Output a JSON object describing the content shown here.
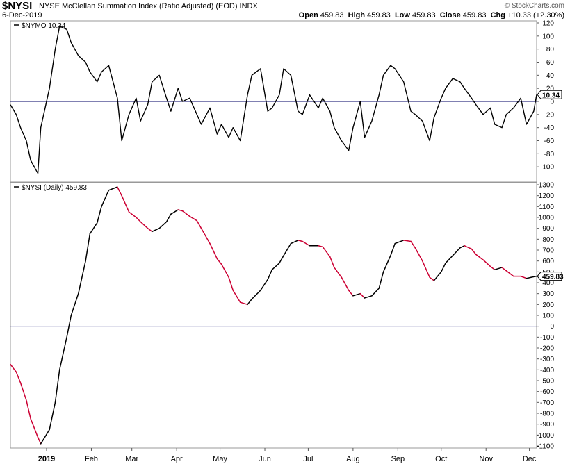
{
  "header": {
    "symbol": "$NYSI",
    "description": "NYSE McClellan Summation Index (Ratio Adjusted) (EOD)  INDX",
    "date": "6-Dec-2019",
    "brand": "© StockCharts.com",
    "open_label": "Open",
    "open": "459.83",
    "high_label": "High",
    "high": "459.83",
    "low_label": "Low",
    "low": "459.83",
    "close_label": "Close",
    "close": "459.83",
    "chg_label": "Chg",
    "chg": "+10.33 (+2.30%)"
  },
  "colors": {
    "up": "#000000",
    "down": "#cc0033",
    "zero_line": "#000066",
    "badge": "#000000"
  },
  "chart_data": [
    {
      "type": "line",
      "label": "$NYMO 10.34",
      "last_value_label": "10.34",
      "ylim": [
        -120,
        120
      ],
      "yticks": [
        120,
        100,
        80,
        60,
        40,
        20,
        0,
        -20,
        -40,
        -60,
        -80,
        -100
      ],
      "zero_line": 0,
      "x": [
        "2018-12-07",
        "2018-12-11",
        "2018-12-14",
        "2018-12-18",
        "2018-12-21",
        "2018-12-26",
        "2018-12-28",
        "2019-01-03",
        "2019-01-07",
        "2019-01-10",
        "2019-01-15",
        "2019-01-18",
        "2019-01-23",
        "2019-01-28",
        "2019-01-31",
        "2019-02-05",
        "2019-02-08",
        "2019-02-13",
        "2019-02-19",
        "2019-02-22",
        "2019-02-27",
        "2019-03-04",
        "2019-03-07",
        "2019-03-12",
        "2019-03-15",
        "2019-03-20",
        "2019-03-25",
        "2019-03-28",
        "2019-04-02",
        "2019-04-05",
        "2019-04-10",
        "2019-04-15",
        "2019-04-18",
        "2019-04-24",
        "2019-04-29",
        "2019-05-02",
        "2019-05-07",
        "2019-05-10",
        "2019-05-15",
        "2019-05-20",
        "2019-05-23",
        "2019-05-29",
        "2019-06-03",
        "2019-06-06",
        "2019-06-11",
        "2019-06-14",
        "2019-06-19",
        "2019-06-24",
        "2019-06-27",
        "2019-07-02",
        "2019-07-08",
        "2019-07-11",
        "2019-07-16",
        "2019-07-19",
        "2019-07-24",
        "2019-07-29",
        "2019-08-01",
        "2019-08-06",
        "2019-08-09",
        "2019-08-14",
        "2019-08-19",
        "2019-08-22",
        "2019-08-27",
        "2019-08-30",
        "2019-09-05",
        "2019-09-10",
        "2019-09-13",
        "2019-09-18",
        "2019-09-23",
        "2019-09-26",
        "2019-10-01",
        "2019-10-04",
        "2019-10-09",
        "2019-10-14",
        "2019-10-17",
        "2019-10-22",
        "2019-10-25",
        "2019-10-30",
        "2019-11-04",
        "2019-11-07",
        "2019-11-12",
        "2019-11-15",
        "2019-11-20",
        "2019-11-25",
        "2019-11-29",
        "2019-12-04",
        "2019-12-06"
      ],
      "values": [
        -5,
        -20,
        -40,
        -60,
        -90,
        -110,
        -40,
        20,
        80,
        115,
        110,
        90,
        70,
        60,
        45,
        30,
        45,
        55,
        5,
        -60,
        -20,
        5,
        -30,
        -5,
        30,
        40,
        5,
        -15,
        20,
        0,
        5,
        -20,
        -35,
        -10,
        -50,
        -35,
        -55,
        -40,
        -60,
        10,
        40,
        50,
        -15,
        -10,
        10,
        50,
        40,
        -15,
        -20,
        10,
        -10,
        5,
        -15,
        -40,
        -60,
        -75,
        -40,
        0,
        -55,
        -30,
        10,
        40,
        55,
        50,
        30,
        -15,
        -20,
        -30,
        -60,
        -25,
        5,
        20,
        35,
        30,
        20,
        5,
        -5,
        -20,
        -10,
        -35,
        -40,
        -20,
        -10,
        5,
        -35,
        -15,
        10.34
      ]
    },
    {
      "type": "line",
      "label": "$NYSI (Daily) 459.83",
      "last_value_label": "459.83",
      "ylim": [
        -1100,
        1300
      ],
      "yticks": [
        1300,
        1200,
        1100,
        1000,
        900,
        800,
        700,
        600,
        500,
        400,
        300,
        200,
        100,
        0,
        -100,
        -200,
        -300,
        -400,
        -500,
        -600,
        -700,
        -800,
        -900,
        -1000,
        -1100
      ],
      "zero_line": 0,
      "x": [
        "2018-12-07",
        "2018-12-11",
        "2018-12-14",
        "2018-12-18",
        "2018-12-21",
        "2018-12-26",
        "2018-12-28",
        "2019-01-03",
        "2019-01-07",
        "2019-01-10",
        "2019-01-15",
        "2019-01-18",
        "2019-01-23",
        "2019-01-28",
        "2019-01-31",
        "2019-02-05",
        "2019-02-08",
        "2019-02-13",
        "2019-02-19",
        "2019-02-22",
        "2019-02-27",
        "2019-03-04",
        "2019-03-07",
        "2019-03-12",
        "2019-03-15",
        "2019-03-20",
        "2019-03-25",
        "2019-03-28",
        "2019-04-02",
        "2019-04-05",
        "2019-04-10",
        "2019-04-15",
        "2019-04-18",
        "2019-04-24",
        "2019-04-29",
        "2019-05-02",
        "2019-05-07",
        "2019-05-10",
        "2019-05-15",
        "2019-05-20",
        "2019-05-23",
        "2019-05-29",
        "2019-06-03",
        "2019-06-06",
        "2019-06-11",
        "2019-06-14",
        "2019-06-19",
        "2019-06-24",
        "2019-06-27",
        "2019-07-02",
        "2019-07-08",
        "2019-07-11",
        "2019-07-16",
        "2019-07-19",
        "2019-07-24",
        "2019-07-29",
        "2019-08-01",
        "2019-08-06",
        "2019-08-09",
        "2019-08-14",
        "2019-08-19",
        "2019-08-22",
        "2019-08-27",
        "2019-08-30",
        "2019-09-05",
        "2019-09-10",
        "2019-09-13",
        "2019-09-18",
        "2019-09-23",
        "2019-09-26",
        "2019-10-01",
        "2019-10-04",
        "2019-10-09",
        "2019-10-14",
        "2019-10-17",
        "2019-10-22",
        "2019-10-25",
        "2019-10-30",
        "2019-11-04",
        "2019-11-07",
        "2019-11-12",
        "2019-11-15",
        "2019-11-20",
        "2019-11-25",
        "2019-11-29",
        "2019-12-04",
        "2019-12-06"
      ],
      "values": [
        -350,
        -420,
        -520,
        -680,
        -850,
        -1020,
        -1080,
        -950,
        -700,
        -400,
        -100,
        100,
        300,
        600,
        850,
        950,
        1100,
        1250,
        1280,
        1200,
        1050,
        1000,
        960,
        900,
        870,
        900,
        960,
        1030,
        1070,
        1060,
        1010,
        970,
        900,
        760,
        620,
        570,
        450,
        330,
        220,
        200,
        250,
        330,
        430,
        520,
        580,
        650,
        760,
        790,
        780,
        740,
        740,
        730,
        640,
        540,
        450,
        330,
        280,
        300,
        260,
        280,
        350,
        500,
        650,
        760,
        790,
        780,
        720,
        600,
        450,
        420,
        500,
        580,
        650,
        720,
        740,
        710,
        660,
        610,
        550,
        520,
        540,
        510,
        460,
        459.83,
        440,
        455,
        459.83
      ]
    }
  ],
  "x_axis": {
    "labels": [
      "2019",
      "Feb",
      "Mar",
      "Apr",
      "May",
      "Jun",
      "Jul",
      "Aug",
      "Sep",
      "Oct",
      "Nov",
      "Dec"
    ],
    "dates": [
      "2019-01-01",
      "2019-02-01",
      "2019-03-01",
      "2019-04-01",
      "2019-05-01",
      "2019-06-01",
      "2019-07-01",
      "2019-08-01",
      "2019-09-01",
      "2019-10-01",
      "2019-11-01",
      "2019-12-01"
    ]
  }
}
